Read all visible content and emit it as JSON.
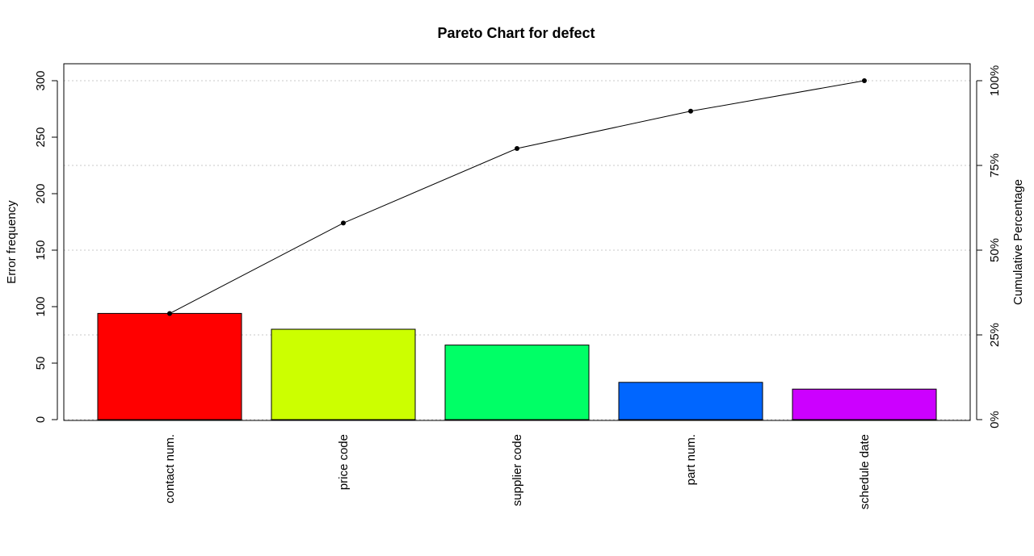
{
  "chart_data": {
    "type": "bar",
    "title": "Pareto Chart for defect",
    "ylabel": "Error frequency",
    "y2label": "Cumulative Percentage",
    "categories": [
      "contact num.",
      "price code",
      "supplier code",
      "part num.",
      "schedule date"
    ],
    "values": [
      94,
      80,
      66,
      33,
      27
    ],
    "colors": [
      "#FF0000",
      "#CCFF00",
      "#00FF66",
      "#0066FF",
      "#CC00FF"
    ],
    "cumulative": [
      94,
      174,
      240,
      273,
      300
    ],
    "cumulative_percent": [
      31.3,
      58.0,
      80.0,
      91.0,
      100.0
    ],
    "ylim": [
      0,
      300
    ],
    "yticks": [
      "0",
      "50",
      "100",
      "150",
      "200",
      "250",
      "300"
    ],
    "y2ticks": [
      "0%",
      "25%",
      "50%",
      "75%",
      "100%"
    ],
    "grid": "horizontal dotted at right-axis ticks",
    "line_color": "#000000"
  }
}
